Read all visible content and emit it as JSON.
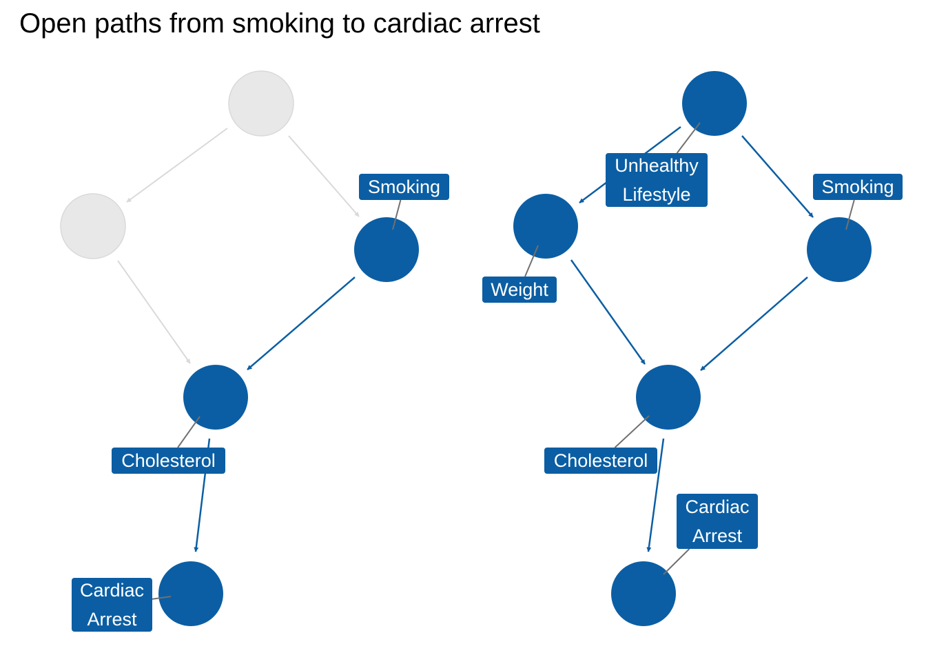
{
  "title": "Open paths from smoking to cardiac arrest",
  "colors": {
    "open": "#0B5EA3",
    "faded": "#E8E8E8",
    "faded_edge": "#D9D9D9",
    "leader": "#707070",
    "label_text": "#FFFFFF"
  },
  "panels": [
    {
      "id": "left",
      "nodes": [
        {
          "id": "u",
          "label": [],
          "state": "faded"
        },
        {
          "id": "w",
          "label": [],
          "state": "faded"
        },
        {
          "id": "s",
          "label": [
            "Smoking"
          ],
          "state": "open"
        },
        {
          "id": "c",
          "label": [
            "Cholesterol"
          ],
          "state": "open"
        },
        {
          "id": "a",
          "label": [
            "Cardiac",
            "Arrest"
          ],
          "state": "open"
        }
      ],
      "edges": [
        {
          "from": "u",
          "to": "w",
          "state": "faded"
        },
        {
          "from": "u",
          "to": "s",
          "state": "faded"
        },
        {
          "from": "w",
          "to": "c",
          "state": "faded"
        },
        {
          "from": "s",
          "to": "c",
          "state": "open"
        },
        {
          "from": "c",
          "to": "a",
          "state": "open"
        }
      ]
    },
    {
      "id": "right",
      "nodes": [
        {
          "id": "u",
          "label": [
            "Unhealthy",
            "Lifestyle"
          ],
          "state": "open"
        },
        {
          "id": "w",
          "label": [
            "Weight"
          ],
          "state": "open"
        },
        {
          "id": "s",
          "label": [
            "Smoking"
          ],
          "state": "open"
        },
        {
          "id": "c",
          "label": [
            "Cholesterol"
          ],
          "state": "open"
        },
        {
          "id": "a",
          "label": [
            "Cardiac",
            "Arrest"
          ],
          "state": "open"
        }
      ],
      "edges": [
        {
          "from": "u",
          "to": "w",
          "state": "open"
        },
        {
          "from": "u",
          "to": "s",
          "state": "open"
        },
        {
          "from": "w",
          "to": "c",
          "state": "open"
        },
        {
          "from": "s",
          "to": "c",
          "state": "open"
        },
        {
          "from": "c",
          "to": "a",
          "state": "open"
        }
      ]
    }
  ]
}
